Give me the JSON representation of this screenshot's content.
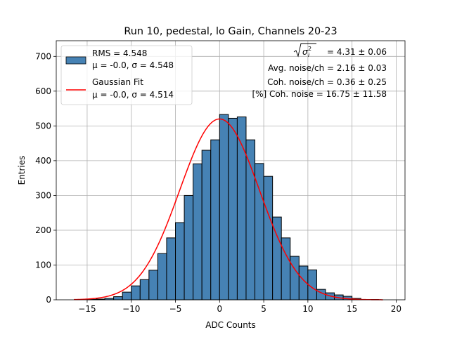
{
  "chart_data": {
    "type": "bar",
    "title": "Run 10, pedestal, lo Gain, Channels 20-23",
    "xlabel": "ADC Counts",
    "ylabel": "Entries",
    "xlim": [
      -18.5,
      21.0
    ],
    "ylim": [
      0,
      745
    ],
    "xticks": [
      -15,
      -10,
      -5,
      0,
      5,
      10,
      15,
      20
    ],
    "xtick_labels": [
      "−15",
      "−10",
      "−5",
      "0",
      "5",
      "10",
      "15",
      "20"
    ],
    "yticks": [
      0,
      100,
      200,
      300,
      400,
      500,
      600,
      700
    ],
    "ytick_labels": [
      "0",
      "100",
      "200",
      "300",
      "400",
      "500",
      "600",
      "700"
    ],
    "grid": true,
    "bin_width": 1,
    "bin_starts": [
      -16,
      -15,
      -14,
      -13,
      -12,
      -11,
      -10,
      -9,
      -8,
      -7,
      -6,
      -5,
      -4,
      -3,
      -2,
      -1,
      0,
      1,
      2,
      3,
      4,
      5,
      6,
      7,
      8,
      9,
      10,
      11,
      12,
      13,
      14,
      15,
      16,
      17,
      18
    ],
    "bar_values": [
      0,
      1,
      2,
      4,
      9,
      22,
      40,
      58,
      85,
      133,
      178,
      222,
      300,
      391,
      430,
      460,
      533,
      522,
      526,
      460,
      392,
      355,
      238,
      178,
      125,
      97,
      86,
      30,
      20,
      14,
      10,
      4,
      1,
      1,
      0
    ],
    "bar_color": "#4682b4",
    "series": [
      {
        "name": "Gaussian Fit",
        "type": "line",
        "color": "#ff0000",
        "mu": 0.0,
        "sigma": 4.514,
        "amplitude": 520,
        "x_range": [
          -16.5,
          18.5
        ]
      }
    ],
    "legend": {
      "position": "top-left",
      "entries": [
        {
          "kind": "patch",
          "color": "#4682b4",
          "line1": "RMS = 4.548",
          "line2": "μ = -0.0, σ = 4.548"
        },
        {
          "kind": "line",
          "color": "#ff0000",
          "line1": "Gaussian Fit",
          "line2": "μ = -0.0, σ = 4.514"
        }
      ]
    },
    "annotations": [
      "= 4.31 ± 0.06",
      "Avg. noise/ch = 2.16 ± 0.03",
      "Coh. noise/ch = 0.36 ± 0.25",
      "[%] Coh. noise = 16.75 ± 11.58"
    ]
  }
}
